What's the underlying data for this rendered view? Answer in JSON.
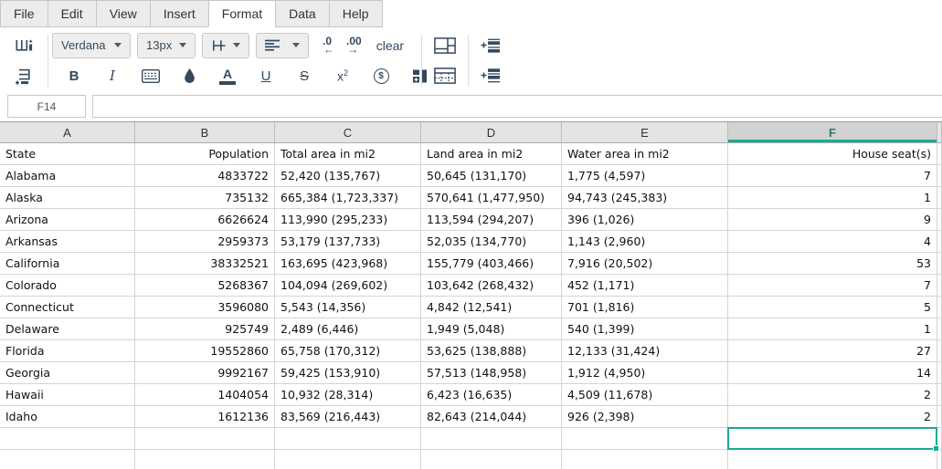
{
  "menu": {
    "items": [
      "File",
      "Edit",
      "View",
      "Insert",
      "Format",
      "Data",
      "Help"
    ],
    "active_item": "Format"
  },
  "toolbar": {
    "font_family_value": "Verdana",
    "font_size_value": "13px",
    "decrease_decimal_label": ".0",
    "decrease_decimal_arrow": "←",
    "increase_decimal_label": ".00",
    "increase_decimal_arrow": "→",
    "clear_label": "clear",
    "bold_label": "B",
    "italic_label": "I",
    "font_color_label": "A",
    "underline_label": "U",
    "strikethrough_label": "S",
    "superscript_base": "x",
    "superscript_exponent": "2",
    "currency_symbol": "$",
    "icons": {
      "add_column_icon": "add-column",
      "add_row_icon": "add-row",
      "border_style_icon": "border-style",
      "alignment_icon": "align-left",
      "decrease_decimal_icon": "decrease-decimal",
      "increase_decimal_icon": "increase-decimal",
      "fill_color_icon": "fill-color-droplet",
      "cell_borders_icon": "cell-borders",
      "merge_blocks_icon": "merge-blocks",
      "merge_table_icon": "merge-cells-table",
      "dotted_borders_icon": "table-dotted-borders",
      "insert_above_icon": "insert-row-above",
      "insert_below_icon": "insert-row-below",
      "caret_icon": "caret-down"
    }
  },
  "formula_bar": {
    "cell_reference": "F14",
    "formula_value": ""
  },
  "grid": {
    "column_letters": [
      "A",
      "B",
      "C",
      "D",
      "E",
      "F"
    ],
    "column_alignments": [
      "left",
      "right",
      "left",
      "left",
      "left",
      "right"
    ],
    "selected_column_index": 5,
    "selected_cell": {
      "reference": "F14",
      "row": 13,
      "col": 5
    },
    "rows": [
      [
        "State",
        "Population",
        "Total area in mi2",
        "Land area in mi2",
        "Water area in mi2",
        "House seat(s)"
      ],
      [
        "Alabama",
        "4833722",
        "52,420 (135,767)",
        "50,645 (131,170)",
        "1,775 (4,597)",
        "7"
      ],
      [
        "Alaska",
        "735132",
        "665,384 (1,723,337)",
        "570,641 (1,477,950)",
        "94,743 (245,383)",
        "1"
      ],
      [
        "Arizona",
        "6626624",
        "113,990 (295,233)",
        "113,594 (294,207)",
        "396 (1,026)",
        "9"
      ],
      [
        "Arkansas",
        "2959373",
        "53,179 (137,733)",
        "52,035 (134,770)",
        "1,143 (2,960)",
        "4"
      ],
      [
        "California",
        "38332521",
        "163,695 (423,968)",
        "155,779 (403,466)",
        "7,916 (20,502)",
        "53"
      ],
      [
        "Colorado",
        "5268367",
        "104,094 (269,602)",
        "103,642 (268,432)",
        "452 (1,171)",
        "7"
      ],
      [
        "Connecticut",
        "3596080",
        "5,543 (14,356)",
        "4,842 (12,541)",
        "701 (1,816)",
        "5"
      ],
      [
        "Delaware",
        "925749",
        "2,489 (6,446)",
        "1,949 (5,048)",
        "540 (1,399)",
        "1"
      ],
      [
        "Florida",
        "19552860",
        "65,758 (170,312)",
        "53,625 (138,888)",
        "12,133 (31,424)",
        "27"
      ],
      [
        "Georgia",
        "9992167",
        "59,425 (153,910)",
        "57,513 (148,958)",
        "1,912 (4,950)",
        "14"
      ],
      [
        "Hawaii",
        "1404054",
        "10,932 (28,314)",
        "6,423 (16,635)",
        "4,509 (11,678)",
        "2"
      ],
      [
        "Idaho",
        "1612136",
        "83,569 (216,443)",
        "82,643 (214,044)",
        "926 (2,398)",
        "2"
      ],
      [
        "",
        "",
        "",
        "",
        "",
        ""
      ]
    ]
  },
  "colors": {
    "accent_teal": "#1aab94",
    "selected_header_text": "#2e7d50",
    "icon_color": "#34495e"
  }
}
